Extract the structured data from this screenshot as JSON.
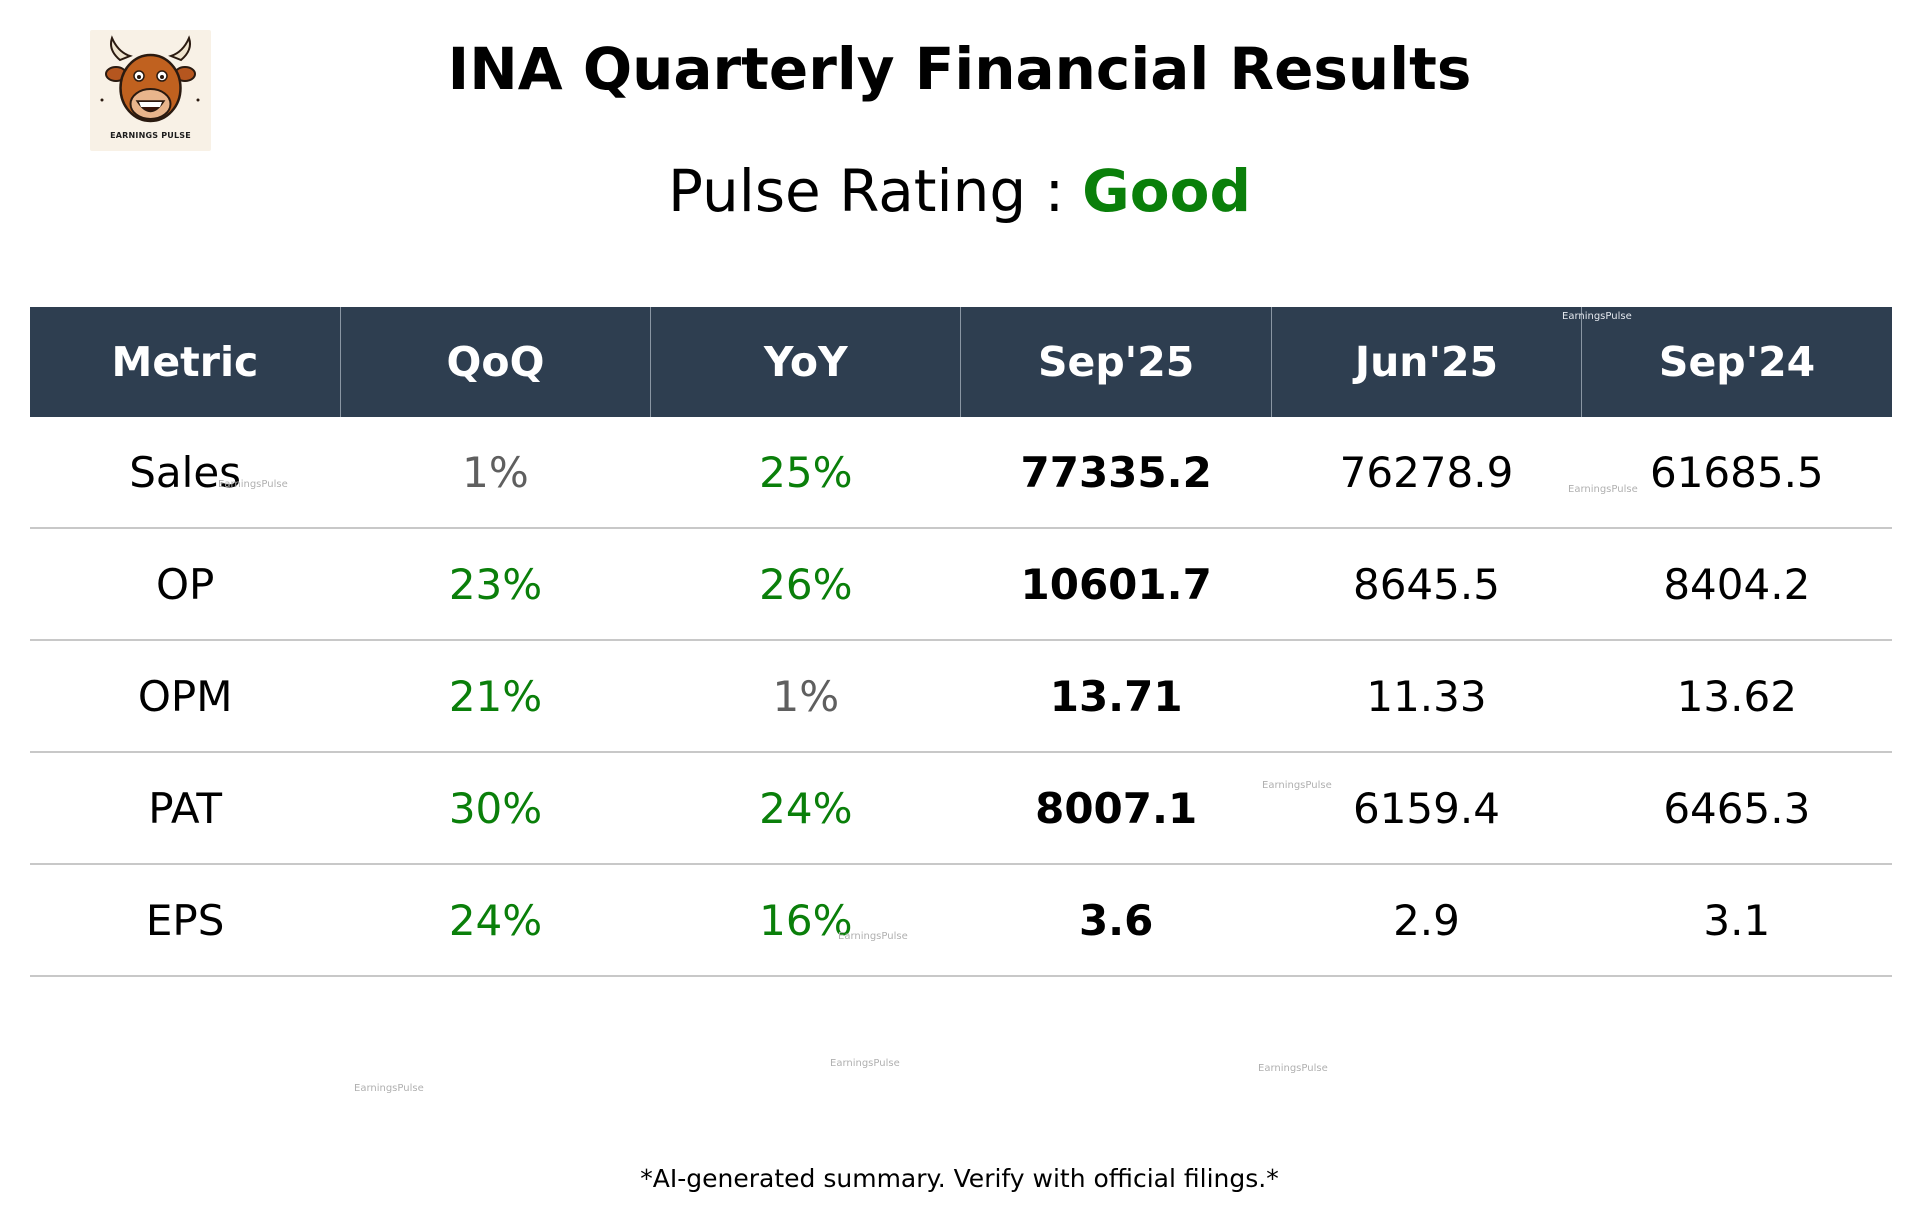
{
  "logo": {
    "text": "EARNINGS PULSE"
  },
  "title": "INA Quarterly Financial Results",
  "rating": {
    "label": "Pulse Rating :",
    "value": "Good",
    "value_color": "#0a7f0a"
  },
  "table": {
    "headers": [
      "Metric",
      "QoQ",
      "YoY",
      "Sep'25",
      "Jun'25",
      "Sep'24"
    ],
    "rows": [
      {
        "metric": "Sales",
        "qoq": "1%",
        "qoq_trend": "neutral",
        "yoy": "25%",
        "yoy_trend": "positive",
        "sep25": "77335.2",
        "jun25": "76278.9",
        "sep24": "61685.5"
      },
      {
        "metric": "OP",
        "qoq": "23%",
        "qoq_trend": "positive",
        "yoy": "26%",
        "yoy_trend": "positive",
        "sep25": "10601.7",
        "jun25": "8645.5",
        "sep24": "8404.2"
      },
      {
        "metric": "OPM",
        "qoq": "21%",
        "qoq_trend": "positive",
        "yoy": "1%",
        "yoy_trend": "neutral",
        "sep25": "13.71",
        "jun25": "11.33",
        "sep24": "13.62"
      },
      {
        "metric": "PAT",
        "qoq": "30%",
        "qoq_trend": "positive",
        "yoy": "24%",
        "yoy_trend": "positive",
        "sep25": "8007.1",
        "jun25": "6159.4",
        "sep24": "6465.3"
      },
      {
        "metric": "EPS",
        "qoq": "24%",
        "qoq_trend": "positive",
        "yoy": "16%",
        "yoy_trend": "positive",
        "sep25": "3.6",
        "jun25": "2.9",
        "sep24": "3.1"
      }
    ]
  },
  "watermark": "EarningsPulse",
  "footer": "*AI-generated summary. Verify with official filings.*",
  "colors": {
    "header_bg": "#2e3e50",
    "positive": "#0a7f0a",
    "neutral": "#5f5f5f"
  }
}
